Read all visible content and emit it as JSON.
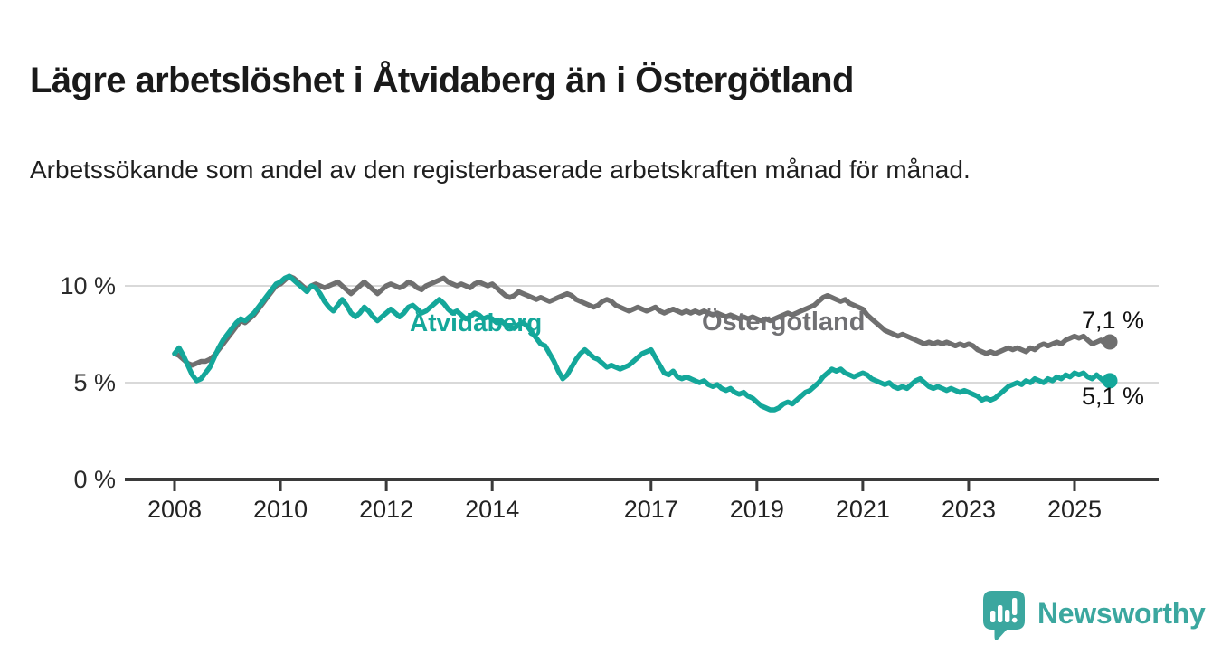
{
  "header": {
    "title": "Lägre arbetslöshet i Åtvidaberg än i Östergötland",
    "subtitle": "Arbetssökande som andel av den registerbaserade arbetskraften månad för månad."
  },
  "colors": {
    "atvidaberg_teal": "#14a79a",
    "ostergotland_gray": "#6f6f6f",
    "gridline": "#d9d9d9",
    "axis": "#3a3a3a",
    "tick_label": "#222222",
    "value_label": "#111111",
    "logo_teal": "#3ba79f"
  },
  "chart_data": {
    "type": "line",
    "title": "Lägre arbetslöshet i Åtvidaberg än i Östergötland",
    "xlabel": "",
    "ylabel": "Arbetssökande som andel av den registerbaserade arbetskraften",
    "x_start_year": 2008,
    "x_interval": "monthly",
    "x_end": "2025-09",
    "ylim": [
      0,
      11.7
    ],
    "grid": "horizontal",
    "legend_position": "inline-labels-on-lines",
    "yticks": [
      {
        "value": 0,
        "label": "0 %"
      },
      {
        "value": 5,
        "label": "5 %"
      },
      {
        "value": 10,
        "label": "10 %"
      }
    ],
    "xticks": [
      {
        "value": 2008,
        "label": "2008"
      },
      {
        "value": 2010,
        "label": "2010"
      },
      {
        "value": 2012,
        "label": "2012"
      },
      {
        "value": 2014,
        "label": "2014"
      },
      {
        "value": 2017,
        "label": "2017"
      },
      {
        "value": 2019,
        "label": "2019"
      },
      {
        "value": 2021,
        "label": "2021"
      },
      {
        "value": 2023,
        "label": "2023"
      },
      {
        "value": 2025,
        "label": "2025"
      }
    ],
    "series": [
      {
        "name": "Östergötland",
        "color": "#6f6f6f",
        "end_label": "7,1 %",
        "end_value": 7.1,
        "values": [
          6.5,
          6.4,
          6.2,
          6.0,
          5.9,
          6.0,
          6.1,
          6.1,
          6.2,
          6.4,
          6.7,
          7.0,
          7.3,
          7.6,
          7.9,
          8.2,
          8.1,
          8.3,
          8.5,
          8.8,
          9.1,
          9.4,
          9.7,
          10.0,
          10.1,
          10.3,
          10.5,
          10.4,
          10.2,
          10.0,
          9.8,
          10.0,
          10.1,
          10.0,
          9.9,
          10.0,
          10.1,
          10.2,
          10.0,
          9.8,
          9.6,
          9.8,
          10.0,
          10.2,
          10.0,
          9.8,
          9.6,
          9.8,
          10.0,
          10.1,
          10.0,
          9.9,
          10.0,
          10.2,
          10.1,
          9.9,
          9.8,
          10.0,
          10.1,
          10.2,
          10.3,
          10.4,
          10.2,
          10.1,
          10.0,
          10.1,
          10.0,
          9.9,
          10.1,
          10.2,
          10.1,
          10.0,
          10.1,
          9.9,
          9.7,
          9.5,
          9.4,
          9.5,
          9.7,
          9.6,
          9.5,
          9.4,
          9.3,
          9.4,
          9.3,
          9.2,
          9.3,
          9.4,
          9.5,
          9.6,
          9.5,
          9.3,
          9.2,
          9.1,
          9.0,
          8.9,
          9.0,
          9.2,
          9.3,
          9.2,
          9.0,
          8.9,
          8.8,
          8.7,
          8.8,
          8.9,
          8.8,
          8.7,
          8.8,
          8.9,
          8.7,
          8.6,
          8.7,
          8.8,
          8.7,
          8.6,
          8.7,
          8.6,
          8.7,
          8.6,
          8.7,
          8.6,
          8.5,
          8.6,
          8.5,
          8.4,
          8.5,
          8.4,
          8.3,
          8.4,
          8.3,
          8.4,
          8.3,
          8.2,
          8.3,
          8.2,
          8.3,
          8.4,
          8.5,
          8.6,
          8.5,
          8.6,
          8.7,
          8.8,
          8.9,
          9.0,
          9.2,
          9.4,
          9.5,
          9.4,
          9.3,
          9.2,
          9.3,
          9.1,
          9.0,
          8.9,
          8.8,
          8.5,
          8.3,
          8.1,
          7.9,
          7.7,
          7.6,
          7.5,
          7.4,
          7.5,
          7.4,
          7.3,
          7.2,
          7.1,
          7.0,
          7.1,
          7.0,
          7.1,
          7.0,
          7.1,
          7.0,
          6.9,
          7.0,
          6.9,
          7.0,
          6.9,
          6.7,
          6.6,
          6.5,
          6.6,
          6.5,
          6.6,
          6.7,
          6.8,
          6.7,
          6.8,
          6.7,
          6.6,
          6.8,
          6.7,
          6.9,
          7.0,
          6.9,
          7.0,
          7.1,
          7.0,
          7.2,
          7.3,
          7.4,
          7.3,
          7.4,
          7.2,
          7.0,
          7.1,
          7.2,
          7.0,
          7.1
        ]
      },
      {
        "name": "Åtvidaberg",
        "color": "#14a79a",
        "end_label": "5,1 %",
        "end_value": 5.1,
        "values": [
          6.5,
          6.8,
          6.4,
          5.9,
          5.4,
          5.1,
          5.2,
          5.5,
          5.8,
          6.3,
          6.8,
          7.2,
          7.5,
          7.8,
          8.1,
          8.3,
          8.2,
          8.4,
          8.6,
          8.9,
          9.2,
          9.5,
          9.8,
          10.1,
          10.2,
          10.4,
          10.5,
          10.3,
          10.1,
          9.9,
          9.7,
          10.0,
          9.9,
          9.6,
          9.2,
          8.9,
          8.7,
          9.0,
          9.3,
          9.0,
          8.6,
          8.4,
          8.6,
          8.9,
          8.7,
          8.4,
          8.2,
          8.4,
          8.6,
          8.8,
          8.6,
          8.4,
          8.6,
          8.9,
          9.0,
          8.8,
          8.6,
          8.7,
          8.9,
          9.1,
          9.3,
          9.1,
          8.8,
          8.6,
          8.7,
          8.5,
          8.3,
          8.4,
          8.6,
          8.5,
          8.3,
          8.4,
          8.3,
          8.1,
          8.2,
          8.0,
          7.9,
          7.8,
          8.0,
          8.1,
          7.9,
          7.6,
          7.3,
          7.0,
          6.9,
          6.5,
          6.1,
          5.6,
          5.2,
          5.4,
          5.8,
          6.2,
          6.5,
          6.7,
          6.5,
          6.3,
          6.2,
          6.0,
          5.8,
          5.9,
          5.8,
          5.7,
          5.8,
          5.9,
          6.1,
          6.3,
          6.5,
          6.6,
          6.7,
          6.3,
          5.9,
          5.5,
          5.4,
          5.6,
          5.3,
          5.2,
          5.3,
          5.2,
          5.1,
          5.0,
          5.1,
          4.9,
          4.8,
          4.9,
          4.7,
          4.6,
          4.7,
          4.5,
          4.4,
          4.5,
          4.3,
          4.2,
          4.0,
          3.8,
          3.7,
          3.6,
          3.6,
          3.7,
          3.9,
          4.0,
          3.9,
          4.1,
          4.3,
          4.5,
          4.6,
          4.8,
          5.0,
          5.3,
          5.5,
          5.7,
          5.6,
          5.7,
          5.5,
          5.4,
          5.3,
          5.4,
          5.5,
          5.4,
          5.2,
          5.1,
          5.0,
          4.9,
          5.0,
          4.8,
          4.7,
          4.8,
          4.7,
          4.9,
          5.1,
          5.2,
          5.0,
          4.8,
          4.7,
          4.8,
          4.7,
          4.6,
          4.7,
          4.6,
          4.5,
          4.6,
          4.5,
          4.4,
          4.3,
          4.1,
          4.2,
          4.1,
          4.2,
          4.4,
          4.6,
          4.8,
          4.9,
          5.0,
          4.9,
          5.1,
          5.0,
          5.2,
          5.1,
          5.0,
          5.2,
          5.1,
          5.3,
          5.2,
          5.4,
          5.3,
          5.5,
          5.4,
          5.5,
          5.3,
          5.2,
          5.4,
          5.2,
          5.0,
          5.1
        ]
      }
    ]
  },
  "annotations": {
    "atvidaberg_label": "Åtvidaberg",
    "ostergotland_label": "Östergötland",
    "end_value_top": "7,1 %",
    "end_value_bottom": "5,1 %"
  },
  "logo": {
    "text": "Newsworthy"
  }
}
